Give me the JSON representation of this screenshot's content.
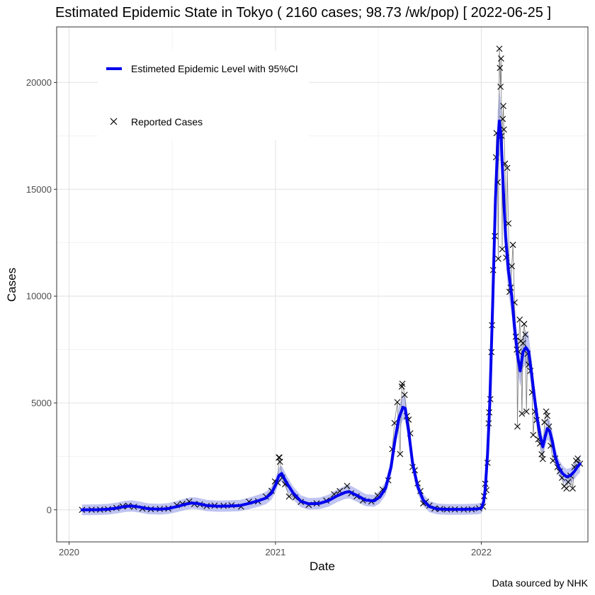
{
  "chart_data": {
    "type": "line",
    "title": "Estimated Epidemic State in Tokyo  ( 2160 cases; 98.73 /wk/pop) [ 2022-06-25 ]",
    "xlabel": "Date",
    "ylabel": "Cases",
    "caption": "Data sourced by NHK",
    "xlim": [
      "2019-12-10",
      "2022-07-09"
    ],
    "ylim": [
      -1500,
      22600
    ],
    "x_ticks": [
      {
        "date": "2020-01-01",
        "label": "2020"
      },
      {
        "date": "2021-01-01",
        "label": "2021"
      },
      {
        "date": "2022-01-01",
        "label": "2022"
      }
    ],
    "y_ticks": [
      {
        "value": 0,
        "label": "0"
      },
      {
        "value": 5000,
        "label": "5000"
      },
      {
        "value": 10000,
        "label": "10000"
      },
      {
        "value": 15000,
        "label": "15000"
      },
      {
        "value": 20000,
        "label": "20000"
      }
    ],
    "grid": true,
    "legend": {
      "position": "top-left",
      "entries": [
        {
          "label": "Estimeted Epidemic Level with 95%CI",
          "symbol": "line",
          "color": "#0000ee"
        },
        {
          "label": "Reported Cases",
          "symbol": "cross",
          "color": "#000000"
        }
      ]
    },
    "series": [
      {
        "name": "Estimeted Epidemic Level with 95%CI",
        "kind": "estimate",
        "color": "#0000ee",
        "ci_color": "#aab0ee",
        "points": [
          [
            "2020-01-24",
            0
          ],
          [
            "2020-02-20",
            5
          ],
          [
            "2020-03-10",
            30
          ],
          [
            "2020-03-25",
            80
          ],
          [
            "2020-04-10",
            160
          ],
          [
            "2020-04-22",
            180
          ],
          [
            "2020-05-05",
            130
          ],
          [
            "2020-05-20",
            50
          ],
          [
            "2020-06-10",
            30
          ],
          [
            "2020-06-25",
            60
          ],
          [
            "2020-07-10",
            150
          ],
          [
            "2020-07-25",
            260
          ],
          [
            "2020-08-05",
            320
          ],
          [
            "2020-08-15",
            300
          ],
          [
            "2020-09-01",
            200
          ],
          [
            "2020-09-20",
            170
          ],
          [
            "2020-10-10",
            180
          ],
          [
            "2020-10-30",
            200
          ],
          [
            "2020-11-15",
            300
          ],
          [
            "2020-12-01",
            420
          ],
          [
            "2020-12-15",
            550
          ],
          [
            "2020-12-25",
            780
          ],
          [
            "2021-01-01",
            1150
          ],
          [
            "2021-01-07",
            1600
          ],
          [
            "2021-01-12",
            1700
          ],
          [
            "2021-01-20",
            1300
          ],
          [
            "2021-02-01",
            800
          ],
          [
            "2021-02-15",
            400
          ],
          [
            "2021-03-01",
            280
          ],
          [
            "2021-03-20",
            300
          ],
          [
            "2021-04-05",
            430
          ],
          [
            "2021-04-20",
            650
          ],
          [
            "2021-05-05",
            820
          ],
          [
            "2021-05-12",
            850
          ],
          [
            "2021-05-25",
            680
          ],
          [
            "2021-06-10",
            450
          ],
          [
            "2021-06-25",
            420
          ],
          [
            "2021-07-05",
            600
          ],
          [
            "2021-07-15",
            1000
          ],
          [
            "2021-07-25",
            2000
          ],
          [
            "2021-08-01",
            3300
          ],
          [
            "2021-08-08",
            4300
          ],
          [
            "2021-08-15",
            4800
          ],
          [
            "2021-08-19",
            4750
          ],
          [
            "2021-08-25",
            3700
          ],
          [
            "2021-09-01",
            2200
          ],
          [
            "2021-09-10",
            1100
          ],
          [
            "2021-09-20",
            450
          ],
          [
            "2021-10-01",
            150
          ],
          [
            "2021-10-15",
            40
          ],
          [
            "2021-11-01",
            20
          ],
          [
            "2021-12-01",
            20
          ],
          [
            "2021-12-25",
            40
          ],
          [
            "2022-01-01",
            80
          ],
          [
            "2022-01-05",
            350
          ],
          [
            "2022-01-08",
            1000
          ],
          [
            "2022-01-12",
            2600
          ],
          [
            "2022-01-16",
            5000
          ],
          [
            "2022-01-21",
            9500
          ],
          [
            "2022-01-26",
            14500
          ],
          [
            "2022-01-30",
            17200
          ],
          [
            "2022-02-02",
            18200
          ],
          [
            "2022-02-05",
            17500
          ],
          [
            "2022-02-09",
            15000
          ],
          [
            "2022-02-13",
            12800
          ],
          [
            "2022-02-18",
            11200
          ],
          [
            "2022-02-24",
            10000
          ],
          [
            "2022-03-01",
            8500
          ],
          [
            "2022-03-07",
            7100
          ],
          [
            "2022-03-11",
            6500
          ],
          [
            "2022-03-16",
            7400
          ],
          [
            "2022-03-21",
            7600
          ],
          [
            "2022-03-26",
            7400
          ],
          [
            "2022-03-31",
            6400
          ],
          [
            "2022-04-05",
            5300
          ],
          [
            "2022-04-10",
            4300
          ],
          [
            "2022-04-15",
            3500
          ],
          [
            "2022-04-20",
            2950
          ],
          [
            "2022-04-24",
            3400
          ],
          [
            "2022-04-28",
            3800
          ],
          [
            "2022-05-02",
            3700
          ],
          [
            "2022-05-07",
            3200
          ],
          [
            "2022-05-12",
            2500
          ],
          [
            "2022-05-18",
            2000
          ],
          [
            "2022-05-25",
            1700
          ],
          [
            "2022-06-01",
            1550
          ],
          [
            "2022-06-08",
            1600
          ],
          [
            "2022-06-15",
            1800
          ],
          [
            "2022-06-20",
            2000
          ],
          [
            "2022-06-25",
            2150
          ]
        ]
      },
      {
        "name": "Reported Cases",
        "kind": "reported",
        "color": "#000000",
        "points": [
          [
            "2020-01-24",
            0
          ],
          [
            "2020-02-10",
            5
          ],
          [
            "2020-02-25",
            10
          ],
          [
            "2020-03-10",
            30
          ],
          [
            "2020-03-25",
            90
          ],
          [
            "2020-04-05",
            160
          ],
          [
            "2020-04-15",
            190
          ],
          [
            "2020-04-25",
            140
          ],
          [
            "2020-05-10",
            60
          ],
          [
            "2020-05-25",
            30
          ],
          [
            "2020-06-10",
            40
          ],
          [
            "2020-06-25",
            60
          ],
          [
            "2020-07-10",
            220
          ],
          [
            "2020-07-20",
            280
          ],
          [
            "2020-08-01",
            390
          ],
          [
            "2020-08-10",
            270
          ],
          [
            "2020-08-20",
            250
          ],
          [
            "2020-09-01",
            180
          ],
          [
            "2020-09-15",
            200
          ],
          [
            "2020-10-01",
            190
          ],
          [
            "2020-10-15",
            210
          ],
          [
            "2020-11-01",
            150
          ],
          [
            "2020-11-15",
            380
          ],
          [
            "2020-12-01",
            400
          ],
          [
            "2020-12-15",
            620
          ],
          [
            "2020-12-25",
            890
          ],
          [
            "2020-12-31",
            1330
          ],
          [
            "2021-01-05",
            1270
          ],
          [
            "2021-01-07",
            2450
          ],
          [
            "2021-01-08",
            2450
          ],
          [
            "2021-01-09",
            2250
          ],
          [
            "2021-01-13",
            1500
          ],
          [
            "2021-01-18",
            1200
          ],
          [
            "2021-01-25",
            620
          ],
          [
            "2021-02-05",
            580
          ],
          [
            "2021-02-15",
            370
          ],
          [
            "2021-03-01",
            230
          ],
          [
            "2021-03-15",
            300
          ],
          [
            "2021-04-01",
            430
          ],
          [
            "2021-04-15",
            730
          ],
          [
            "2021-04-25",
            880
          ],
          [
            "2021-05-08",
            1120
          ],
          [
            "2021-05-15",
            770
          ],
          [
            "2021-05-25",
            630
          ],
          [
            "2021-06-05",
            440
          ],
          [
            "2021-06-20",
            390
          ],
          [
            "2021-07-01",
            670
          ],
          [
            "2021-07-10",
            950
          ],
          [
            "2021-07-20",
            1380
          ],
          [
            "2021-07-27",
            2840
          ],
          [
            "2021-07-31",
            4060
          ],
          [
            "2021-08-05",
            5040
          ],
          [
            "2021-08-10",
            2610
          ],
          [
            "2021-08-13",
            5770
          ],
          [
            "2021-08-14",
            5900
          ],
          [
            "2021-08-18",
            5380
          ],
          [
            "2021-08-22",
            4390
          ],
          [
            "2021-08-25",
            4220
          ],
          [
            "2021-08-28",
            3580
          ],
          [
            "2021-09-01",
            2000
          ],
          [
            "2021-09-05",
            1850
          ],
          [
            "2021-09-10",
            1240
          ],
          [
            "2021-09-15",
            880
          ],
          [
            "2021-09-20",
            300
          ],
          [
            "2021-09-25",
            380
          ],
          [
            "2021-10-01",
            200
          ],
          [
            "2021-10-10",
            60
          ],
          [
            "2021-10-20",
            36
          ],
          [
            "2021-11-01",
            20
          ],
          [
            "2021-11-15",
            22
          ],
          [
            "2021-12-01",
            15
          ],
          [
            "2021-12-15",
            22
          ],
          [
            "2021-12-28",
            76
          ],
          [
            "2022-01-04",
            150
          ],
          [
            "2022-01-06",
            640
          ],
          [
            "2022-01-08",
            1220
          ],
          [
            "2022-01-10",
            920
          ],
          [
            "2022-01-12",
            2200
          ],
          [
            "2022-01-14",
            4050
          ],
          [
            "2022-01-15",
            4560
          ],
          [
            "2022-01-17",
            5180
          ],
          [
            "2022-01-19",
            7380
          ],
          [
            "2022-01-20",
            8640
          ],
          [
            "2022-01-22",
            11220
          ],
          [
            "2022-01-25",
            12810
          ],
          [
            "2022-01-27",
            16500
          ],
          [
            "2022-01-28",
            17630
          ],
          [
            "2022-01-30",
            15330
          ],
          [
            "2022-01-31",
            11750
          ],
          [
            "2022-02-02",
            21580
          ],
          [
            "2022-02-03",
            20680
          ],
          [
            "2022-02-04",
            19800
          ],
          [
            "2022-02-05",
            21120
          ],
          [
            "2022-02-06",
            17500
          ],
          [
            "2022-02-07",
            12200
          ],
          [
            "2022-02-08",
            18290
          ],
          [
            "2022-02-09",
            18900
          ],
          [
            "2022-02-10",
            17800
          ],
          [
            "2022-02-12",
            16200
          ],
          [
            "2022-02-14",
            11800
          ],
          [
            "2022-02-16",
            16000
          ],
          [
            "2022-02-18",
            13400
          ],
          [
            "2022-02-20",
            10200
          ],
          [
            "2022-02-22",
            10400
          ],
          [
            "2022-02-24",
            11400
          ],
          [
            "2022-02-26",
            12400
          ],
          [
            "2022-03-01",
            9700
          ],
          [
            "2022-03-03",
            8100
          ],
          [
            "2022-03-05",
            7500
          ],
          [
            "2022-03-06",
            3900
          ],
          [
            "2022-03-08",
            7400
          ],
          [
            "2022-03-10",
            8900
          ],
          [
            "2022-03-12",
            7900
          ],
          [
            "2022-03-14",
            4500
          ],
          [
            "2022-03-16",
            7800
          ],
          [
            "2022-03-18",
            8700
          ],
          [
            "2022-03-20",
            8200
          ],
          [
            "2022-03-22",
            4600
          ],
          [
            "2022-03-24",
            7300
          ],
          [
            "2022-03-26",
            6800
          ],
          [
            "2022-03-29",
            6500
          ],
          [
            "2022-04-01",
            5500
          ],
          [
            "2022-04-03",
            3500
          ],
          [
            "2022-04-06",
            4600
          ],
          [
            "2022-04-09",
            4200
          ],
          [
            "2022-04-12",
            3300
          ],
          [
            "2022-04-15",
            3100
          ],
          [
            "2022-04-18",
            2600
          ],
          [
            "2022-04-20",
            2380
          ],
          [
            "2022-04-23",
            4100
          ],
          [
            "2022-04-26",
            4600
          ],
          [
            "2022-04-28",
            4400
          ],
          [
            "2022-05-01",
            3900
          ],
          [
            "2022-05-04",
            3000
          ],
          [
            "2022-05-08",
            2300
          ],
          [
            "2022-05-12",
            2400
          ],
          [
            "2022-05-16",
            2000
          ],
          [
            "2022-05-20",
            1800
          ],
          [
            "2022-05-24",
            1500
          ],
          [
            "2022-05-28",
            1100
          ],
          [
            "2022-06-01",
            1000
          ],
          [
            "2022-06-04",
            1300
          ],
          [
            "2022-06-08",
            1600
          ],
          [
            "2022-06-12",
            1000
          ],
          [
            "2022-06-15",
            2000
          ],
          [
            "2022-06-18",
            2300
          ],
          [
            "2022-06-21",
            2400
          ],
          [
            "2022-06-25",
            2160
          ]
        ]
      }
    ]
  }
}
